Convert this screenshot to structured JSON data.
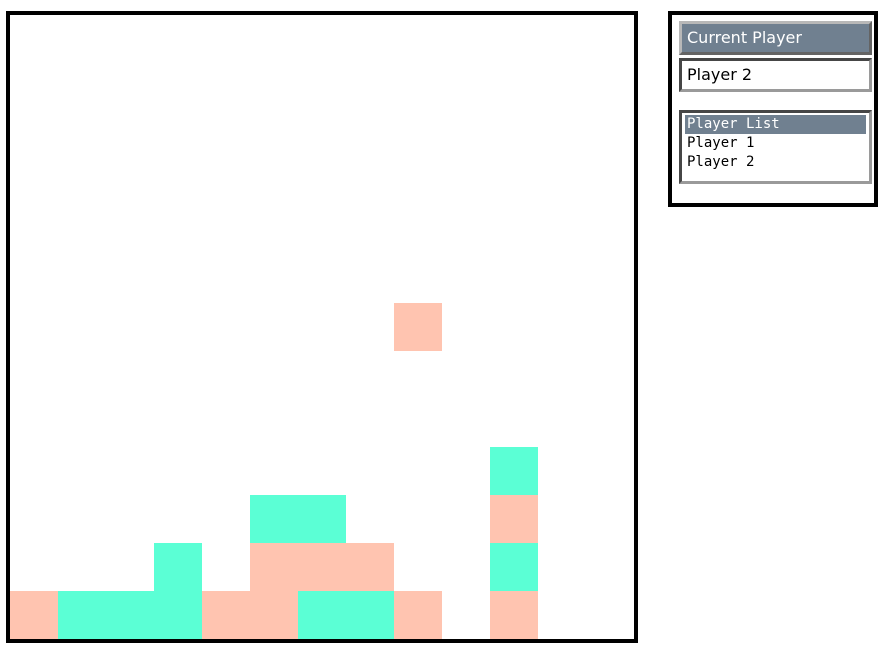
{
  "colors": {
    "player1": "#ffc4b0",
    "player2": "#5bffd5",
    "board_background": "#ffffff",
    "header_background": "#708090"
  },
  "board": {
    "columns": 13,
    "rows": 13,
    "pieces": [
      {
        "col": 0,
        "row": 12,
        "player": 1
      },
      {
        "col": 1,
        "row": 12,
        "player": 2
      },
      {
        "col": 2,
        "row": 12,
        "player": 2
      },
      {
        "col": 3,
        "row": 12,
        "player": 2
      },
      {
        "col": 3,
        "row": 11,
        "player": 2
      },
      {
        "col": 4,
        "row": 12,
        "player": 1
      },
      {
        "col": 5,
        "row": 12,
        "player": 1
      },
      {
        "col": 5,
        "row": 11,
        "player": 1
      },
      {
        "col": 5,
        "row": 10,
        "player": 2
      },
      {
        "col": 6,
        "row": 12,
        "player": 2
      },
      {
        "col": 6,
        "row": 11,
        "player": 1
      },
      {
        "col": 6,
        "row": 10,
        "player": 2
      },
      {
        "col": 7,
        "row": 12,
        "player": 2
      },
      {
        "col": 7,
        "row": 11,
        "player": 1
      },
      {
        "col": 8,
        "row": 12,
        "player": 1
      },
      {
        "col": 8,
        "row": 6,
        "player": 1
      },
      {
        "col": 10,
        "row": 12,
        "player": 1
      },
      {
        "col": 10,
        "row": 11,
        "player": 2
      },
      {
        "col": 10,
        "row": 10,
        "player": 1
      },
      {
        "col": 10,
        "row": 9,
        "player": 2
      }
    ]
  },
  "sidebar": {
    "current_player_label": "Current Player",
    "current_player_value": "Player 2",
    "player_list": {
      "header": "Player List",
      "players": [
        "Player 1",
        "Player 2"
      ]
    }
  }
}
